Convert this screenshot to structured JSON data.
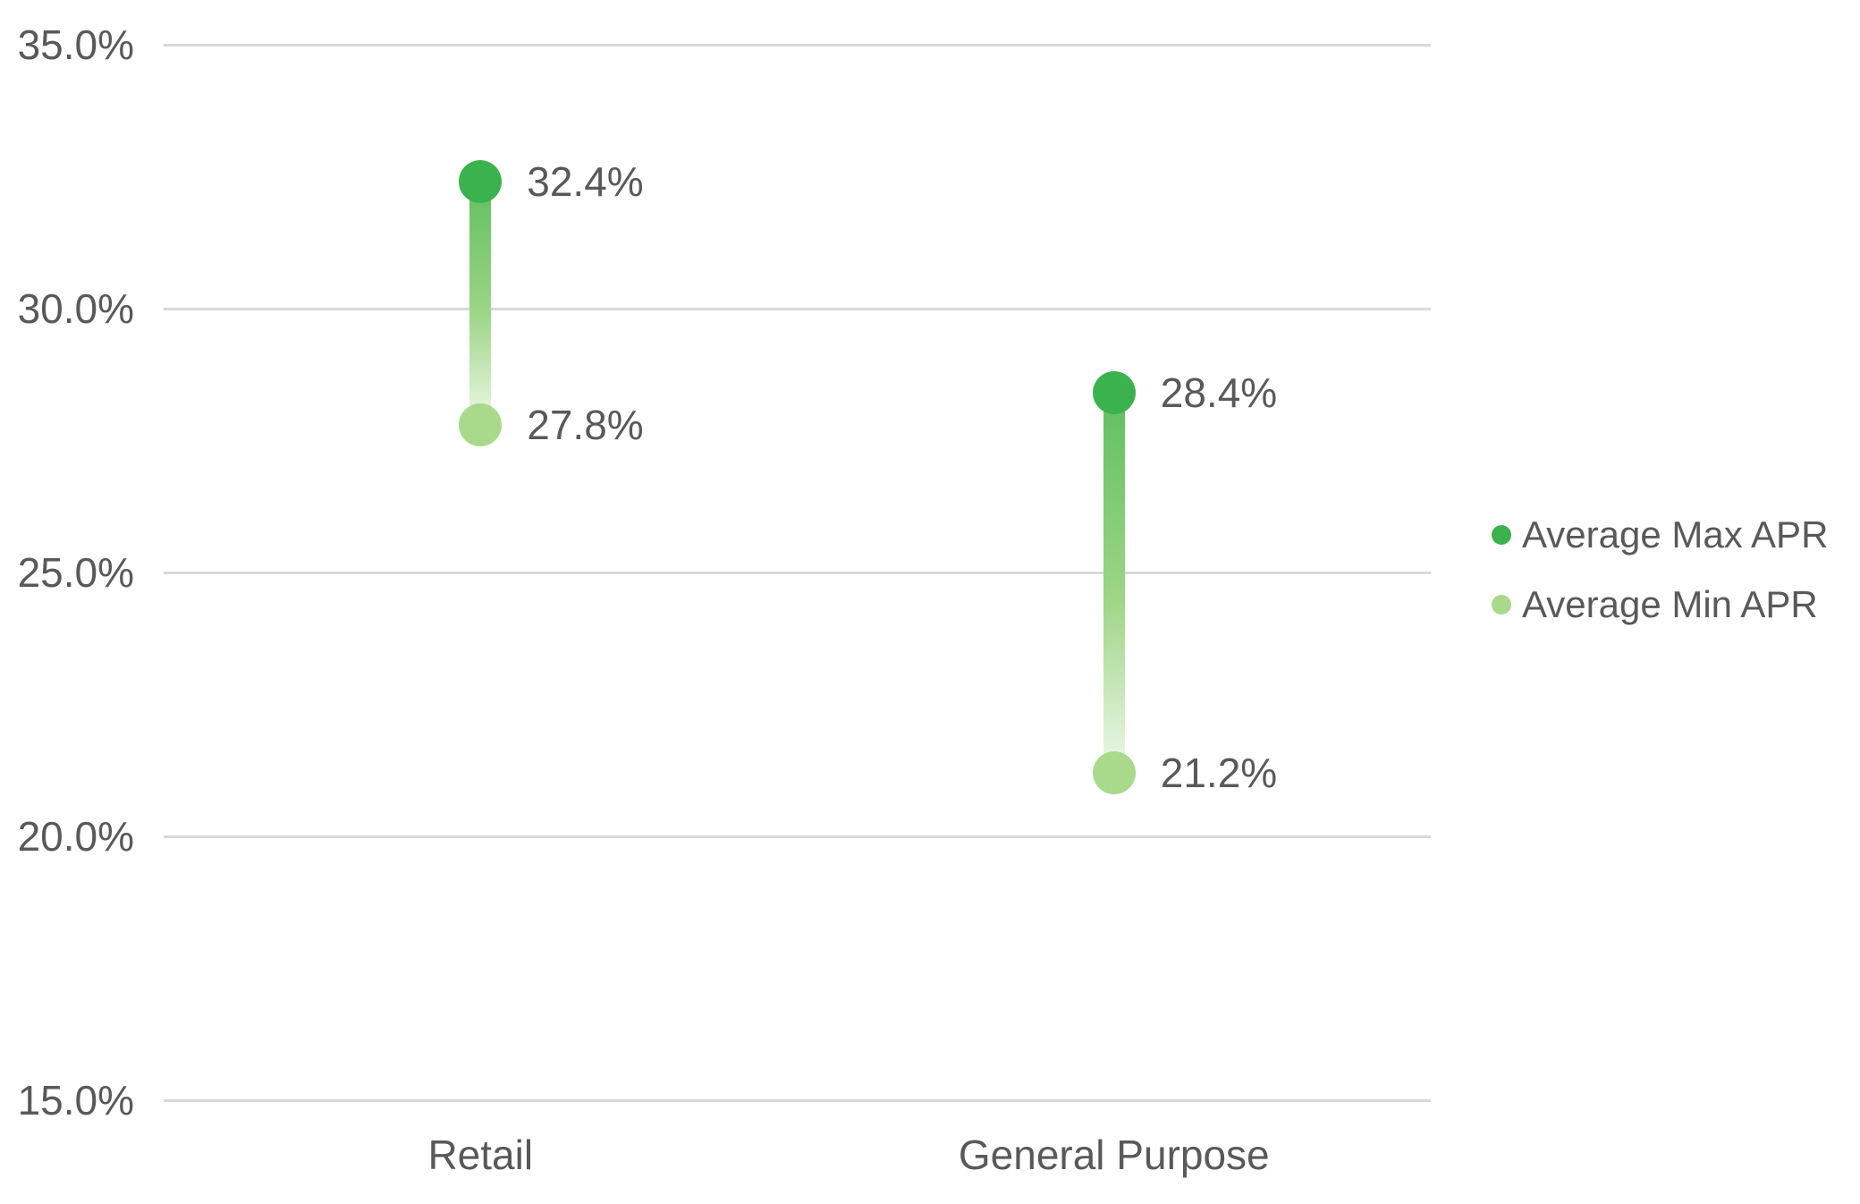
{
  "chart_data": {
    "type": "dumbbell",
    "title": "",
    "xlabel": "",
    "ylabel": "",
    "categories": [
      "Retail",
      "General Purpose"
    ],
    "series": [
      {
        "name": "Average Max APR",
        "values": [
          32.4,
          28.4
        ],
        "labels": [
          "32.4%",
          "28.4%"
        ],
        "color": "#3bb24d"
      },
      {
        "name": "Average Min APR",
        "values": [
          27.8,
          21.2
        ],
        "labels": [
          "27.8%",
          "21.2%"
        ],
        "color": "#a9d98b"
      }
    ],
    "ylim": [
      15,
      35
    ],
    "yticks": [
      {
        "value": 35,
        "label": "35.0%"
      },
      {
        "value": 30,
        "label": "30.0%"
      },
      {
        "value": 25,
        "label": "25.0%"
      },
      {
        "value": 20,
        "label": "20.0%"
      },
      {
        "value": 15,
        "label": "15.0%"
      }
    ],
    "grid": true,
    "legend_position": "right"
  },
  "legend": {
    "items": [
      {
        "label": "Average Max APR"
      },
      {
        "label": "Average Min APR"
      }
    ]
  },
  "colors": {
    "max_marker": "#3bb24d",
    "min_marker": "#a9d98b",
    "connector_top": "#5fbf5d",
    "connector_mid": "#9ed687",
    "connector_bottom": "#e8f5e1",
    "gridline": "#d9d9d9",
    "text": "#595959",
    "background": "#ffffff"
  }
}
